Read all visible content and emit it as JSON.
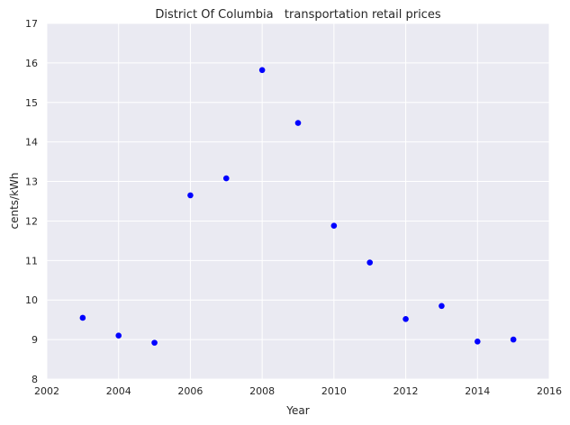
{
  "colors": {
    "plot_background": "#eaeaf2",
    "grid": "#ffffff",
    "point": "#0000ff",
    "text": "#262626"
  },
  "chart_data": {
    "type": "scatter",
    "title": "District Of Columbia   transportation retail prices",
    "xlabel": "Year",
    "ylabel": "cents/kWh",
    "xlim": [
      2002,
      2016
    ],
    "ylim": [
      8,
      17
    ],
    "grid": true,
    "x_ticks": [
      "2002",
      "2004",
      "2006",
      "2008",
      "2010",
      "2012",
      "2014",
      "2016"
    ],
    "y_ticks": [
      "8",
      "9",
      "10",
      "11",
      "12",
      "13",
      "14",
      "15",
      "16",
      "17"
    ],
    "points": [
      {
        "x": 2003,
        "y": 9.55
      },
      {
        "x": 2004,
        "y": 9.1
      },
      {
        "x": 2005,
        "y": 8.92
      },
      {
        "x": 2006,
        "y": 12.65
      },
      {
        "x": 2007,
        "y": 13.08
      },
      {
        "x": 2008,
        "y": 15.82
      },
      {
        "x": 2009,
        "y": 14.48
      },
      {
        "x": 2010,
        "y": 11.88
      },
      {
        "x": 2011,
        "y": 10.95
      },
      {
        "x": 2012,
        "y": 9.52
      },
      {
        "x": 2013,
        "y": 9.85
      },
      {
        "x": 2014,
        "y": 8.95
      },
      {
        "x": 2015,
        "y": 9.0
      }
    ]
  }
}
